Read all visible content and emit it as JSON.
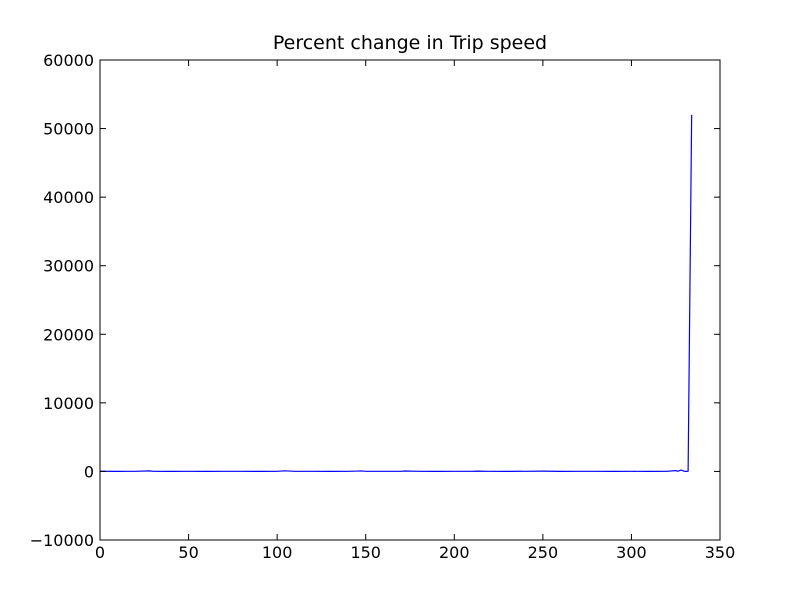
{
  "chart_data": {
    "type": "line",
    "title": "Percent change in Trip speed",
    "xlabel": "",
    "ylabel": "",
    "xlim": [
      0,
      350
    ],
    "ylim": [
      -10000,
      60000
    ],
    "x_ticks": [
      0,
      50,
      100,
      150,
      200,
      250,
      300,
      350
    ],
    "x_tick_labels": [
      "0",
      "50",
      "100",
      "150",
      "200",
      "250",
      "300",
      "350"
    ],
    "y_ticks": [
      -10000,
      0,
      10000,
      20000,
      30000,
      40000,
      50000,
      60000
    ],
    "y_tick_labels": [
      "−10000",
      "0",
      "10000",
      "20000",
      "30000",
      "40000",
      "50000",
      "60000"
    ],
    "grid": false,
    "legend": "none",
    "series": [
      {
        "color": "#0000ff",
        "x": [
          0,
          10,
          20,
          28,
          30,
          40,
          50,
          60,
          70,
          80,
          90,
          100,
          104,
          110,
          120,
          130,
          140,
          148,
          150,
          160,
          170,
          172,
          180,
          190,
          200,
          210,
          213,
          220,
          230,
          237,
          240,
          250,
          260,
          270,
          280,
          290,
          300,
          310,
          320,
          325,
          326,
          328,
          330,
          332,
          334
        ],
        "y": [
          30,
          10,
          20,
          80,
          20,
          10,
          15,
          10,
          20,
          15,
          10,
          20,
          90,
          20,
          15,
          10,
          20,
          70,
          20,
          15,
          20,
          60,
          15,
          10,
          20,
          15,
          40,
          15,
          10,
          30,
          15,
          40,
          10,
          15,
          20,
          10,
          15,
          10,
          20,
          120,
          20,
          200,
          10,
          30,
          52000
        ]
      }
    ]
  }
}
